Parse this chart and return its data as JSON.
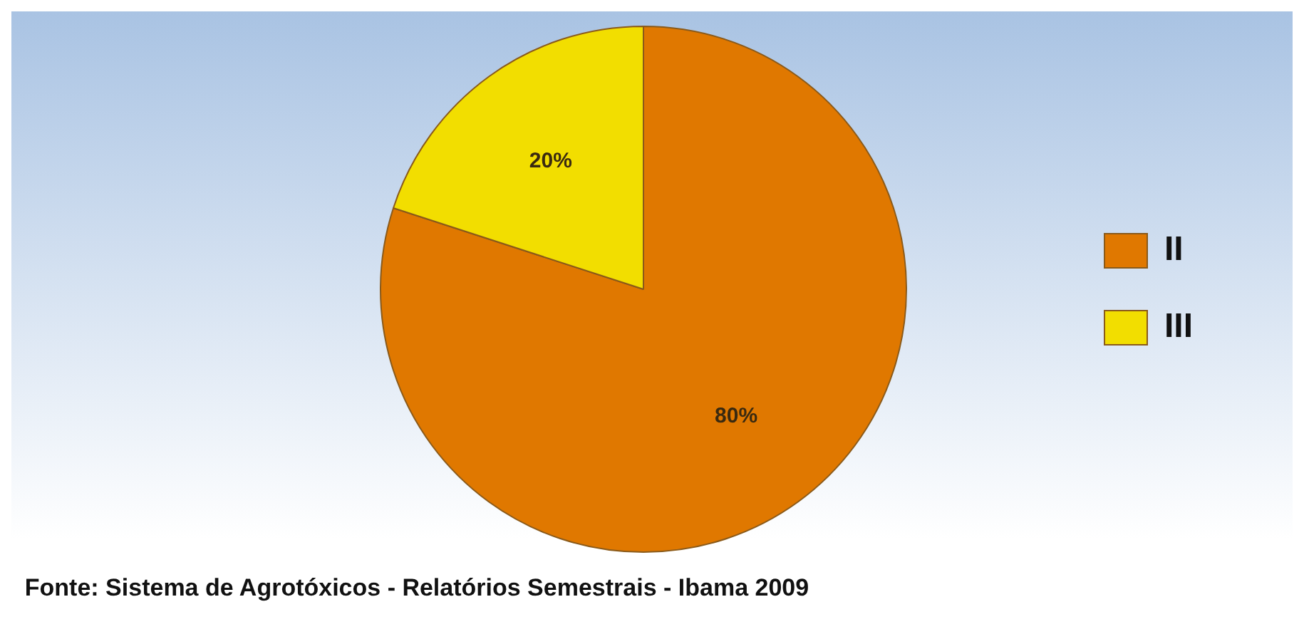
{
  "chart_data": {
    "type": "pie",
    "categories": [
      "II",
      "III"
    ],
    "values": [
      80,
      20
    ],
    "colors": [
      "#e07800",
      "#f2de00"
    ],
    "value_labels": [
      "80%",
      "20%"
    ],
    "legend": "right",
    "annotations": [
      "Fonte: Sistema de Agrotóxicos - Relatórios Semestrais - Ibama 2009"
    ]
  }
}
